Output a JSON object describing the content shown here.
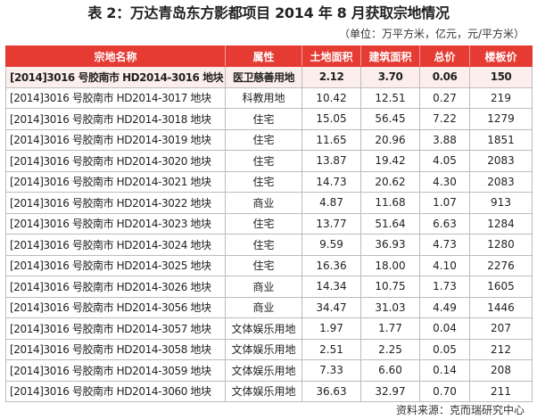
{
  "title": "表 2：万达青岛东方影都项目 2014 年 8 月获取宗地情况",
  "unit_note": "（单位：万平方米，亿元，元/平方米）",
  "source_note": "资料来源：克而瑞研究中心",
  "colors": {
    "header_bg": "#e53b33",
    "header_text": "#ffffff",
    "border": "#bcbcbc"
  },
  "table": {
    "headers": [
      "宗地名称",
      "属性",
      "土地面积",
      "建筑面积",
      "总价",
      "楼板价"
    ],
    "rows": [
      [
        "[2014]3016 号胶南市 HD2014-3016 地块",
        "医卫慈善用地",
        "2.12",
        "3.70",
        "0.06",
        "150"
      ],
      [
        "[2014]3016 号胶南市 HD2014-3017 地块",
        "科教用地",
        "10.42",
        "12.51",
        "0.27",
        "219"
      ],
      [
        "[2014]3016 号胶南市 HD2014-3018 地块",
        "住宅",
        "15.05",
        "56.45",
        "7.22",
        "1279"
      ],
      [
        "[2014]3016 号胶南市 HD2014-3019 地块",
        "住宅",
        "11.65",
        "20.96",
        "3.88",
        "1851"
      ],
      [
        "[2014]3016 号胶南市 HD2014-3020 地块",
        "住宅",
        "13.87",
        "19.42",
        "4.05",
        "2083"
      ],
      [
        "[2014]3016 号胶南市 HD2014-3021 地块",
        "住宅",
        "14.73",
        "20.62",
        "4.30",
        "2083"
      ],
      [
        "[2014]3016 号胶南市 HD2014-3022 地块",
        "商业",
        "4.87",
        "11.68",
        "1.07",
        "913"
      ],
      [
        "[2014]3016 号胶南市 HD2014-3023 地块",
        "住宅",
        "13.77",
        "51.64",
        "6.63",
        "1284"
      ],
      [
        "[2014]3016 号胶南市 HD2014-3024 地块",
        "住宅",
        "9.59",
        "36.93",
        "4.73",
        "1280"
      ],
      [
        "[2014]3016 号胶南市 HD2014-3025 地块",
        "住宅",
        "16.36",
        "18.00",
        "4.10",
        "2276"
      ],
      [
        "[2014]3016 号胶南市 HD2014-3026 地块",
        "商业",
        "14.34",
        "10.75",
        "1.73",
        "1605"
      ],
      [
        "[2014]3016 号胶南市 HD2014-3056 地块",
        "商业",
        "34.47",
        "31.03",
        "4.49",
        "1446"
      ],
      [
        "[2014]3016 号胶南市 HD2014-3057 地块",
        "文体娱乐用地",
        "1.97",
        "1.77",
        "0.04",
        "207"
      ],
      [
        "[2014]3016 号胶南市 HD2014-3058 地块",
        "文体娱乐用地",
        "2.51",
        "2.25",
        "0.05",
        "212"
      ],
      [
        "[2014]3016 号胶南市 HD2014-3059 地块",
        "文体娱乐用地",
        "7.33",
        "6.60",
        "0.14",
        "208"
      ],
      [
        "[2014]3016 号胶南市 HD2014-3060 地块",
        "文体娱乐用地",
        "36.63",
        "32.97",
        "0.70",
        "211"
      ]
    ]
  }
}
